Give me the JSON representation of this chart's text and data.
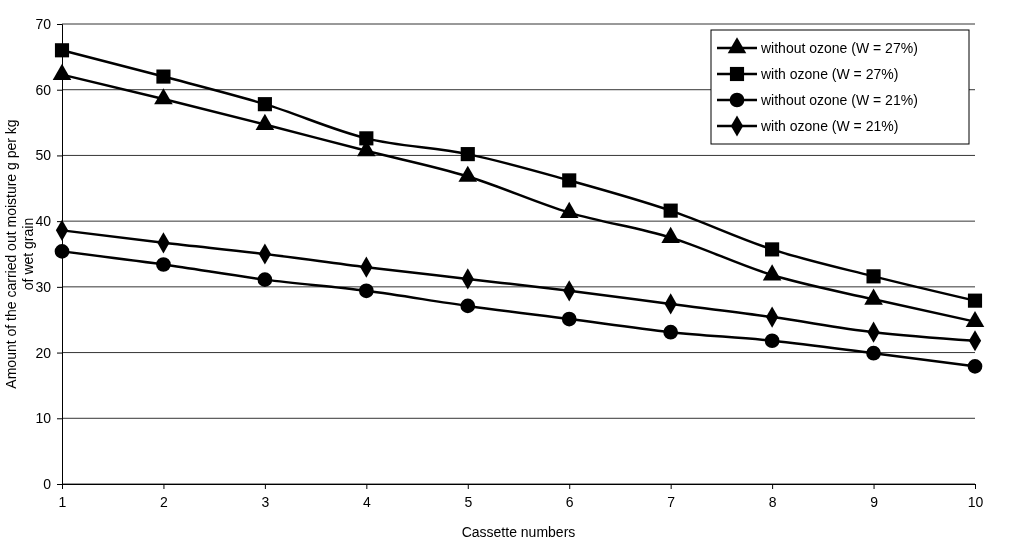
{
  "chart_data": {
    "type": "line",
    "xlabel": "Cassette numbers",
    "ylabel": "Amount of the carried out moisture g per kg of wet grain",
    "x": [
      1,
      2,
      3,
      4,
      5,
      6,
      7,
      8,
      9,
      10
    ],
    "xlim": [
      1,
      10
    ],
    "xticks": [
      1,
      2,
      3,
      4,
      5,
      6,
      7,
      8,
      9,
      10
    ],
    "ylim": [
      0,
      70
    ],
    "yticks": [
      0,
      10,
      20,
      30,
      40,
      50,
      60,
      70
    ],
    "grid": "y",
    "legend": "top right",
    "line_style": "solid",
    "series": [
      {
        "name": "without ozone (W = 27%)",
        "color": "#000000",
        "marker": "triangle",
        "values": [
          62.3,
          58.6,
          54.7,
          50.7,
          46.8,
          41.3,
          37.5,
          31.8,
          28.1,
          24.7
        ]
      },
      {
        "name": "with ozone (W = 27%)",
        "color": "#000000",
        "marker": "square",
        "values": [
          66,
          62,
          57.8,
          52.6,
          50.2,
          46.2,
          41.6,
          35.7,
          31.6,
          27.9
        ]
      },
      {
        "name": "without ozone (W = 21%)",
        "color": "#000000",
        "marker": "circle",
        "values": [
          35.4,
          33.4,
          31.1,
          29.4,
          27.1,
          25.1,
          23.1,
          21.8,
          19.9,
          17.9
        ]
      },
      {
        "name": "with ozone (W = 21%)",
        "color": "#000000",
        "marker": "diamond",
        "values": [
          38.6,
          36.7,
          35,
          33,
          31.2,
          29.4,
          27.4,
          25.4,
          23.1,
          21.8
        ]
      }
    ]
  }
}
